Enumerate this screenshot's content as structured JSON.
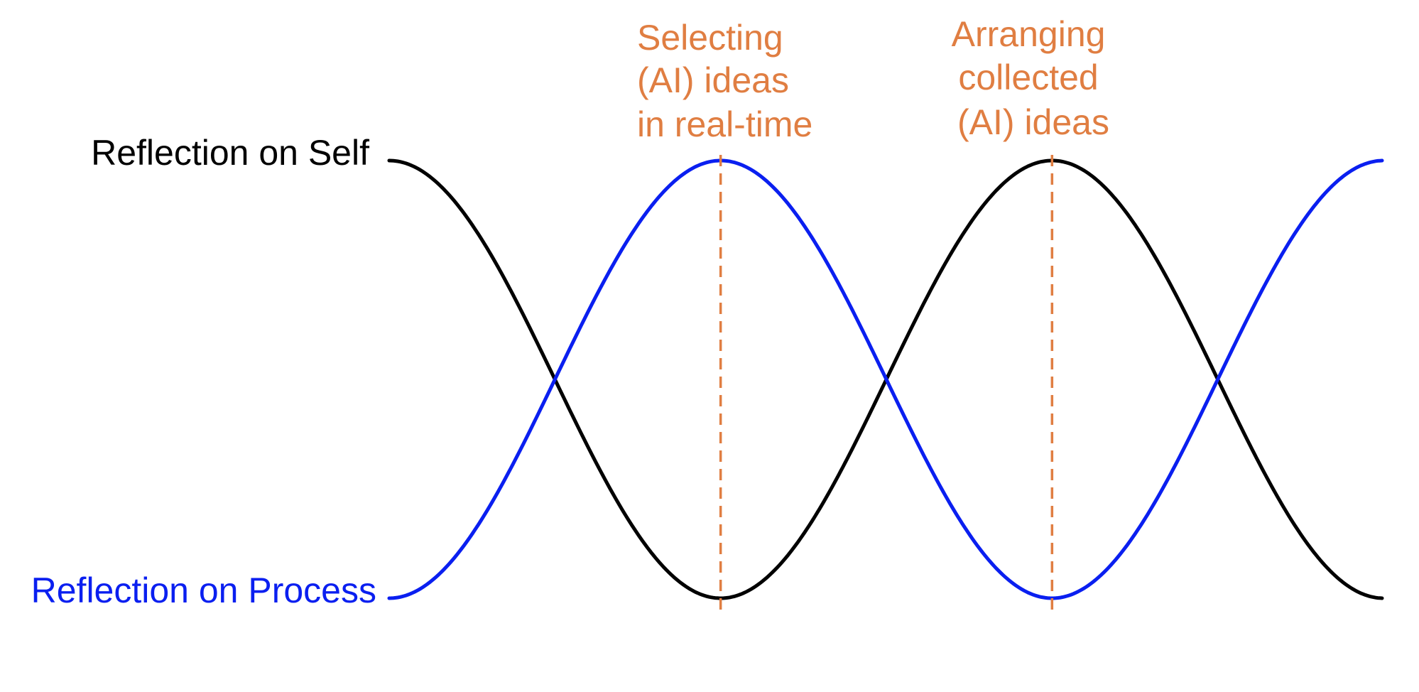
{
  "series": [
    {
      "name": "Reflection on Self",
      "color": "#000000"
    },
    {
      "name": "Reflection on Process",
      "color": "#0a1ff0"
    }
  ],
  "markers": [
    {
      "lines": [
        "Selecting",
        "(AI) ideas",
        "in real-time"
      ],
      "color": "#e07e42"
    },
    {
      "lines": [
        "Arranging",
        "collected",
        "(AI) ideas"
      ],
      "color": "#e07e42"
    }
  ]
}
